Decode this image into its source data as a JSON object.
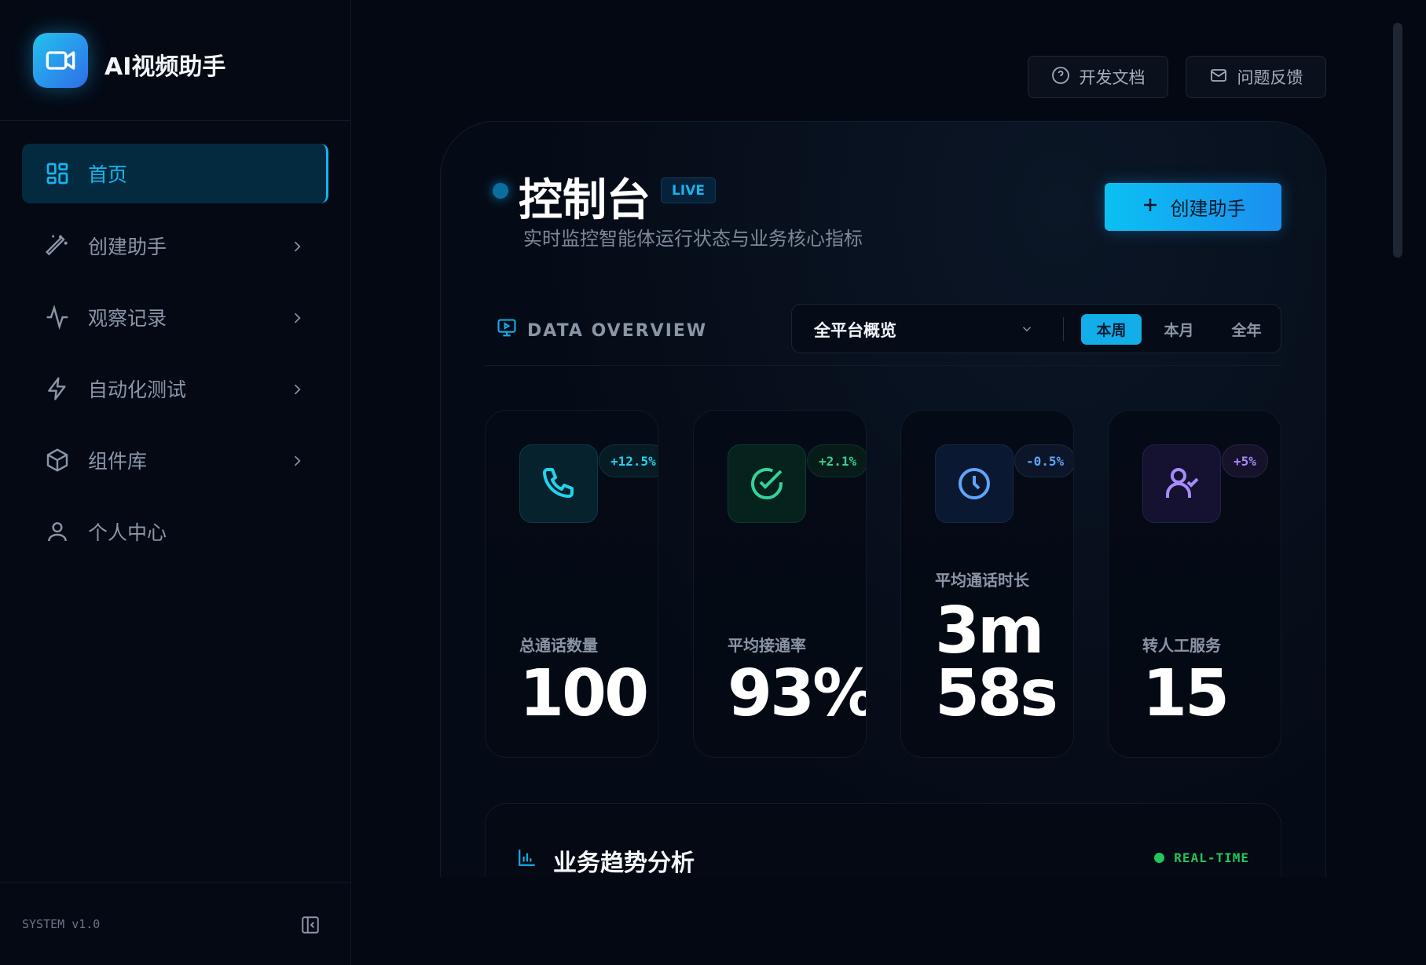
{
  "app": {
    "title": "AI视频助手",
    "version": "SYSTEM v1.0"
  },
  "sidebar": {
    "items": [
      {
        "label": "首页",
        "icon": "grid-icon",
        "active": true
      },
      {
        "label": "创建助手",
        "icon": "magic-wand-icon"
      },
      {
        "label": "观察记录",
        "icon": "activity-icon"
      },
      {
        "label": "自动化测试",
        "icon": "lightning-icon"
      },
      {
        "label": "组件库",
        "icon": "cube-icon"
      },
      {
        "label": "个人中心",
        "icon": "user-icon"
      }
    ]
  },
  "topbar": {
    "docs": "开发文档",
    "feedback": "问题反馈"
  },
  "header": {
    "title": "控制台",
    "badge": "LIVE",
    "subtitle": "实时监控智能体运行状态与业务核心指标",
    "create": "创建助手"
  },
  "overview": {
    "label": "DATA OVERVIEW",
    "scope": "全平台概览",
    "periods": [
      "本周",
      "本月",
      "全年"
    ],
    "active_period": "本周"
  },
  "stats": [
    {
      "label": "总通话数量",
      "value": "100",
      "change": "+12.5%",
      "color": "#22d3ee"
    },
    {
      "label": "平均接通率",
      "value": "93%",
      "change": "+2.1%",
      "color": "#34d399"
    },
    {
      "label": "平均通话时长",
      "value_line1": "3m",
      "value_line2": "58s",
      "change": "-0.5%",
      "color": "#60a5fa"
    },
    {
      "label": "转人工服务",
      "value": "15",
      "change": "+5%",
      "color": "#a78bfa"
    }
  ],
  "trend": {
    "title": "业务趋势分析",
    "status": "REAL-TIME"
  },
  "colors": {
    "accent": "#12aeea",
    "bg": "#030812",
    "live": "#22c55e"
  }
}
